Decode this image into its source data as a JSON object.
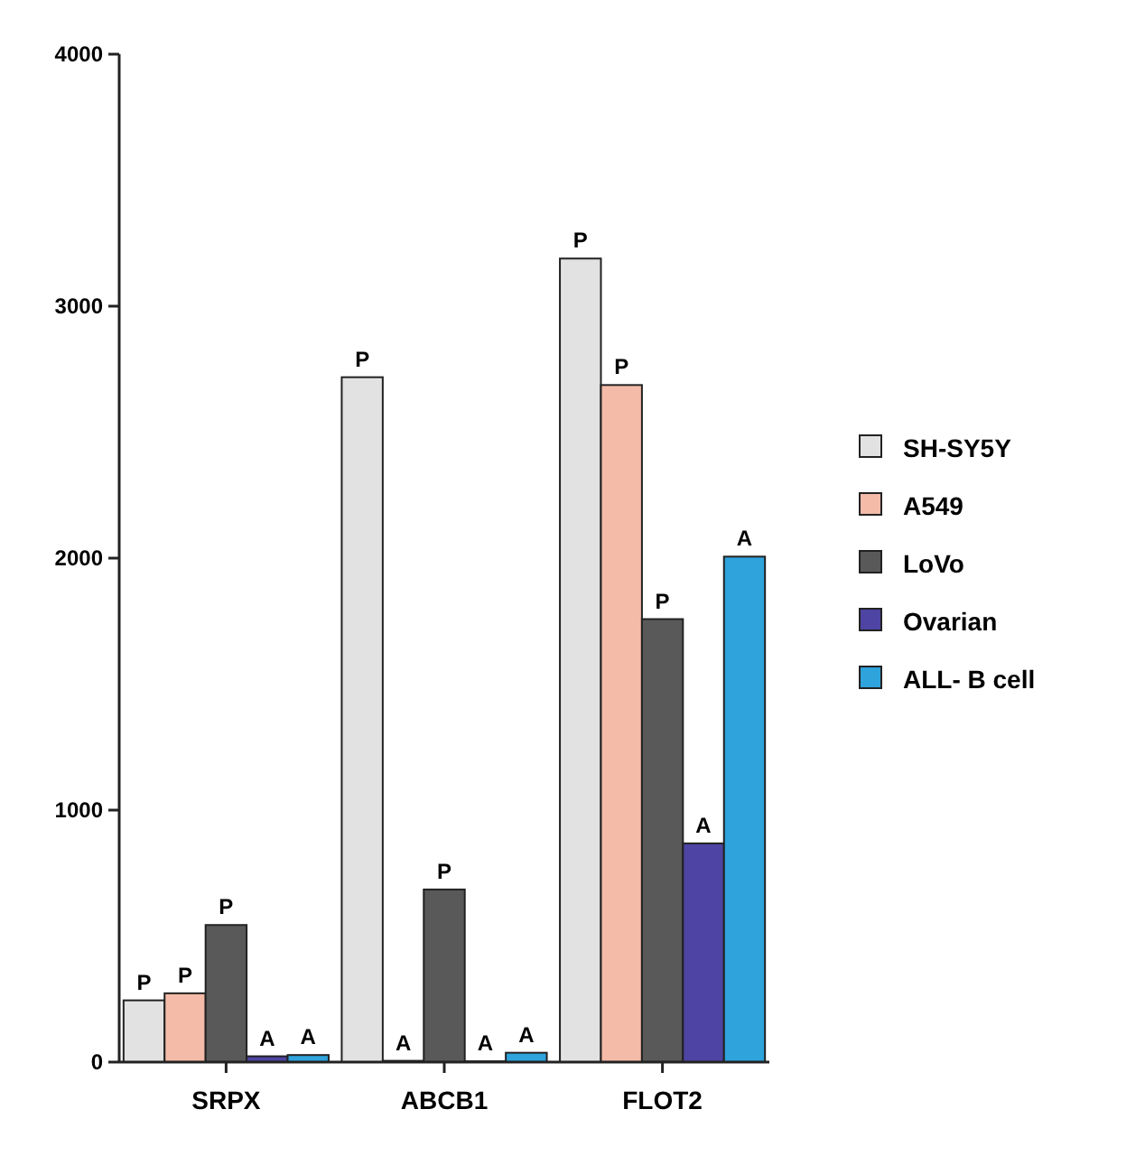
{
  "chart_data": {
    "type": "bar",
    "categories": [
      "SRPX",
      "ABCB1",
      "FLOT2"
    ],
    "series": [
      {
        "name": "SH-SY5Y",
        "color": "#e2e2e2",
        "values": [
          245,
          2718,
          3189
        ],
        "value_labels": [
          "P",
          "P",
          "P"
        ]
      },
      {
        "name": "A549",
        "color": "#f4bba9",
        "values": [
          273,
          5,
          2687
        ],
        "value_labels": [
          "P",
          "A",
          "P"
        ]
      },
      {
        "name": "LoVo",
        "color": "#595959",
        "values": [
          544,
          685,
          1758
        ],
        "value_labels": [
          "P",
          "P",
          "P"
        ]
      },
      {
        "name": "Ovarian",
        "color": "#4d44a3",
        "values": [
          23,
          3,
          868
        ],
        "value_labels": [
          "A",
          "A",
          "A"
        ]
      },
      {
        "name": "ALL- B cell",
        "color": "#2ea3dc",
        "values": [
          28,
          37,
          2006
        ],
        "value_labels": [
          "A",
          "A",
          "A"
        ]
      }
    ],
    "ylim": [
      0,
      4000
    ],
    "yticks": [
      0,
      1000,
      2000,
      3000,
      4000
    ],
    "grid": false,
    "legend": "right"
  }
}
